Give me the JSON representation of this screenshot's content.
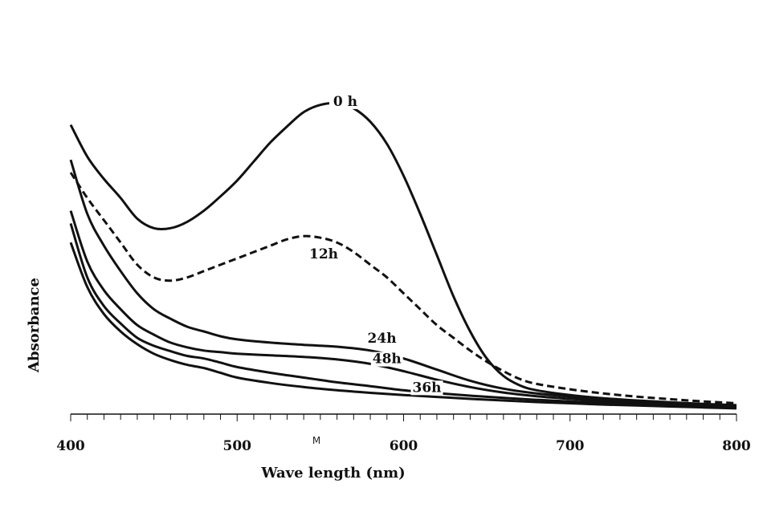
{
  "chart_data": {
    "type": "line",
    "title": "",
    "xlabel": "Wave length (nm)",
    "ylabel": "Absorbance",
    "xlim": [
      400,
      800
    ],
    "ylim": [
      0,
      1
    ],
    "x_ticks": [
      "400",
      "500",
      "600",
      "700",
      "800"
    ],
    "minor_tick_step": 10,
    "y_ticks_shown": false,
    "grid": false,
    "legend": "none (inline curve labels)",
    "stray_mark": "M",
    "line_color": "#111111",
    "series": [
      {
        "name": "0 h",
        "style": "solid",
        "x": [
          400,
          410,
          420,
          430,
          440,
          450,
          460,
          470,
          480,
          490,
          500,
          510,
          520,
          530,
          540,
          550,
          560,
          570,
          580,
          590,
          600,
          610,
          620,
          630,
          640,
          650,
          660,
          670,
          680,
          700,
          720,
          740,
          760,
          780,
          800
        ],
        "y": [
          0.91,
          0.81,
          0.74,
          0.68,
          0.615,
          0.585,
          0.585,
          0.605,
          0.64,
          0.685,
          0.735,
          0.795,
          0.855,
          0.905,
          0.95,
          0.973,
          0.978,
          0.962,
          0.92,
          0.85,
          0.75,
          0.63,
          0.5,
          0.37,
          0.26,
          0.175,
          0.12,
          0.09,
          0.075,
          0.06,
          0.05,
          0.043,
          0.037,
          0.032,
          0.028
        ]
      },
      {
        "name": "12h",
        "style": "dashed",
        "x": [
          400,
          410,
          420,
          430,
          440,
          450,
          460,
          470,
          480,
          490,
          500,
          510,
          520,
          530,
          540,
          550,
          560,
          570,
          580,
          590,
          600,
          610,
          620,
          630,
          640,
          650,
          660,
          670,
          680,
          700,
          720,
          740,
          760,
          780,
          800
        ],
        "y": [
          0.76,
          0.68,
          0.61,
          0.54,
          0.47,
          0.43,
          0.42,
          0.43,
          0.45,
          0.47,
          0.49,
          0.51,
          0.53,
          0.55,
          0.56,
          0.555,
          0.54,
          0.51,
          0.47,
          0.43,
          0.38,
          0.33,
          0.28,
          0.24,
          0.2,
          0.165,
          0.135,
          0.11,
          0.095,
          0.078,
          0.065,
          0.055,
          0.047,
          0.04,
          0.034
        ]
      },
      {
        "name": "24h",
        "style": "solid",
        "x": [
          400,
          410,
          420,
          430,
          440,
          450,
          460,
          470,
          480,
          490,
          500,
          520,
          540,
          560,
          580,
          600,
          620,
          640,
          660,
          680,
          700,
          720,
          740,
          760,
          780,
          800
        ],
        "y": [
          0.8,
          0.63,
          0.53,
          0.45,
          0.38,
          0.33,
          0.3,
          0.275,
          0.26,
          0.245,
          0.235,
          0.225,
          0.218,
          0.212,
          0.2,
          0.175,
          0.14,
          0.105,
          0.08,
          0.065,
          0.055,
          0.047,
          0.041,
          0.036,
          0.031,
          0.026
        ]
      },
      {
        "name": "48h",
        "style": "solid",
        "x": [
          400,
          410,
          420,
          430,
          440,
          450,
          460,
          470,
          480,
          490,
          500,
          520,
          540,
          560,
          580,
          600,
          620,
          640,
          660,
          680,
          700,
          720,
          740,
          760,
          780,
          800
        ],
        "y": [
          0.64,
          0.48,
          0.39,
          0.33,
          0.28,
          0.25,
          0.225,
          0.21,
          0.2,
          0.195,
          0.19,
          0.185,
          0.18,
          0.172,
          0.158,
          0.135,
          0.108,
          0.085,
          0.068,
          0.056,
          0.048,
          0.041,
          0.035,
          0.03,
          0.026,
          0.022
        ]
      },
      {
        "name": "36h",
        "style": "solid",
        "x": [
          400,
          410,
          420,
          430,
          440,
          450,
          460,
          470,
          480,
          490,
          500,
          520,
          540,
          560,
          580,
          600,
          620,
          640,
          660,
          680,
          700,
          720,
          740,
          760,
          780,
          800
        ],
        "y": [
          0.6,
          0.43,
          0.34,
          0.285,
          0.24,
          0.215,
          0.198,
          0.183,
          0.175,
          0.162,
          0.148,
          0.13,
          0.115,
          0.1,
          0.088,
          0.075,
          0.066,
          0.058,
          0.051,
          0.045,
          0.04,
          0.035,
          0.031,
          0.027,
          0.024,
          0.021
        ]
      },
      {
        "name": "",
        "style": "solid",
        "x": [
          400,
          410,
          420,
          430,
          440,
          450,
          460,
          470,
          480,
          490,
          500,
          520,
          540,
          560,
          580,
          600,
          620,
          640,
          660,
          680,
          700,
          720,
          740,
          760,
          780,
          800
        ],
        "y": [
          0.54,
          0.4,
          0.315,
          0.26,
          0.22,
          0.19,
          0.17,
          0.155,
          0.145,
          0.13,
          0.115,
          0.098,
          0.085,
          0.075,
          0.067,
          0.06,
          0.054,
          0.048,
          0.043,
          0.038,
          0.034,
          0.03,
          0.027,
          0.024,
          0.021,
          0.018
        ]
      }
    ],
    "curve_labels": [
      {
        "text": "0 h",
        "x": 565,
        "y": 0.97
      },
      {
        "text": "12h",
        "x": 552,
        "y": 0.49
      },
      {
        "text": "24h",
        "x": 587,
        "y": 0.225
      },
      {
        "text": "48h",
        "x": 590,
        "y": 0.16
      },
      {
        "text": "36h",
        "x": 614,
        "y": 0.07
      }
    ]
  }
}
